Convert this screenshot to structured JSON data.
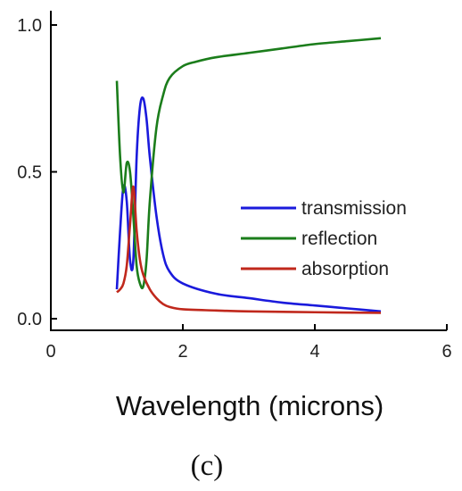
{
  "chart_data": {
    "type": "line",
    "title": "",
    "xlabel": "Wavelength (microns)",
    "ylabel": "",
    "caption": "(c)",
    "xlim": [
      0,
      6
    ],
    "ylim": [
      0,
      1.0
    ],
    "x_ticks": [
      0,
      2,
      4,
      6
    ],
    "x_tick_labels": [
      "0",
      "2",
      "4",
      "6"
    ],
    "y_ticks": [
      0.0,
      0.5,
      1.0
    ],
    "y_tick_labels": [
      "0.0",
      "0.5",
      "1.0"
    ],
    "grid": false,
    "legend_position": "center-right",
    "series": [
      {
        "name": "transmission",
        "color": "#1a1adc",
        "x": [
          1.0,
          1.05,
          1.1,
          1.15,
          1.2,
          1.25,
          1.3,
          1.35,
          1.4,
          1.45,
          1.5,
          1.6,
          1.7,
          1.8,
          2.0,
          2.5,
          3.0,
          3.5,
          4.0,
          4.5,
          5.0
        ],
        "y": [
          0.1,
          0.3,
          0.45,
          0.4,
          0.2,
          0.2,
          0.55,
          0.72,
          0.75,
          0.68,
          0.55,
          0.35,
          0.22,
          0.16,
          0.12,
          0.085,
          0.07,
          0.055,
          0.045,
          0.035,
          0.025
        ]
      },
      {
        "name": "reflection",
        "color": "#1b7d1b",
        "x": [
          1.0,
          1.05,
          1.1,
          1.15,
          1.2,
          1.25,
          1.3,
          1.35,
          1.4,
          1.45,
          1.5,
          1.6,
          1.7,
          1.8,
          2.0,
          2.2,
          2.5,
          3.0,
          3.5,
          4.0,
          4.5,
          5.0
        ],
        "y": [
          0.81,
          0.55,
          0.43,
          0.53,
          0.5,
          0.35,
          0.18,
          0.12,
          0.11,
          0.2,
          0.4,
          0.65,
          0.76,
          0.82,
          0.86,
          0.875,
          0.89,
          0.905,
          0.92,
          0.935,
          0.945,
          0.955
        ]
      },
      {
        "name": "absorption",
        "color": "#c0281c",
        "x": [
          1.0,
          1.05,
          1.1,
          1.15,
          1.2,
          1.25,
          1.3,
          1.35,
          1.4,
          1.5,
          1.6,
          1.7,
          1.8,
          2.0,
          2.5,
          3.0,
          4.0,
          5.0
        ],
        "y": [
          0.09,
          0.1,
          0.12,
          0.18,
          0.32,
          0.45,
          0.3,
          0.2,
          0.15,
          0.1,
          0.07,
          0.05,
          0.04,
          0.032,
          0.028,
          0.025,
          0.022,
          0.02
        ]
      }
    ]
  }
}
